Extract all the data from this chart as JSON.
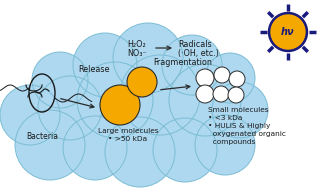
{
  "cloud_color": "#add8f0",
  "cloud_edge_color": "#7bbdd4",
  "sun_body_color": "#f5a800",
  "sun_ray_color": "#1a1a7a",
  "arrow_color": "#2a2a2a",
  "bacteria_color": "#1a1a1a",
  "large_mol_color": "#f5a800",
  "large_mol_edge": "#2a2a2a",
  "small_mol_color": "#ffffff",
  "small_mol_edge": "#2a2a2a",
  "text_color": "#1a1a1a",
  "h2o2_text": "H₂O₂",
  "no3_text": "NO₃⁻",
  "radicals_text": "Radicals",
  "oh_text": "(·OH, etc.)",
  "release_text": "Release",
  "fragmentation_text": "Fragmentation",
  "bacteria_label": "Bacteria",
  "large_mol_label": "Large molecules",
  "large_mol_sub": "• >50 kDa",
  "small_mol_label": "Small molecules",
  "small_mol_sub1": "• <3 kDa",
  "small_mol_sub2": "• HULIS & Highly",
  "small_mol_sub3": "  oxygenated organic",
  "small_mol_sub4": "  compounds",
  "hv_text": "hν",
  "bg_color": "#ffffff"
}
